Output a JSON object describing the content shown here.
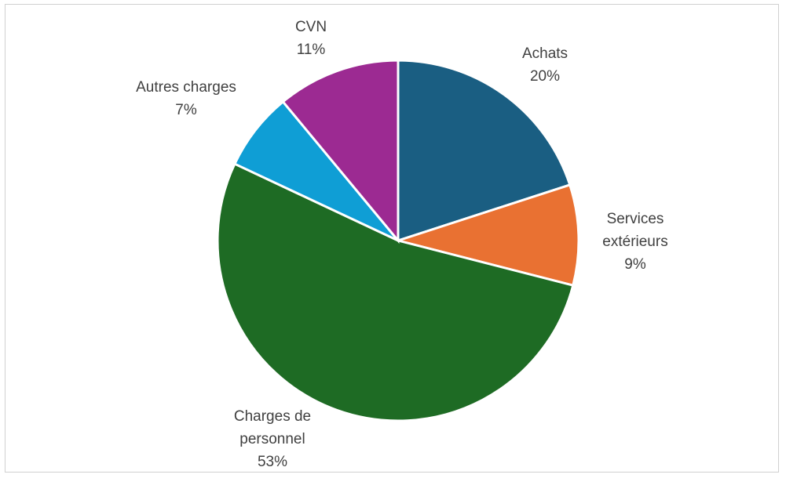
{
  "chart_data": {
    "type": "pie",
    "title": "",
    "slices": [
      {
        "label_lines": [
          "Achats"
        ],
        "percent_label": "20%",
        "value": 20,
        "color": "#1a5e82"
      },
      {
        "label_lines": [
          "Services",
          "extérieurs"
        ],
        "percent_label": "9%",
        "value": 9,
        "color": "#e97132"
      },
      {
        "label_lines": [
          "Charges de",
          "personnel"
        ],
        "percent_label": "53%",
        "value": 53,
        "color": "#1e6b24"
      },
      {
        "label_lines": [
          "Autres charges"
        ],
        "percent_label": "7%",
        "value": 7,
        "color": "#0f9ed5"
      },
      {
        "label_lines": [
          "CVN"
        ],
        "percent_label": "11%",
        "value": 11,
        "color": "#9c2a92"
      }
    ],
    "start_angle_deg": 0,
    "direction": "clockwise",
    "legend": "none"
  }
}
